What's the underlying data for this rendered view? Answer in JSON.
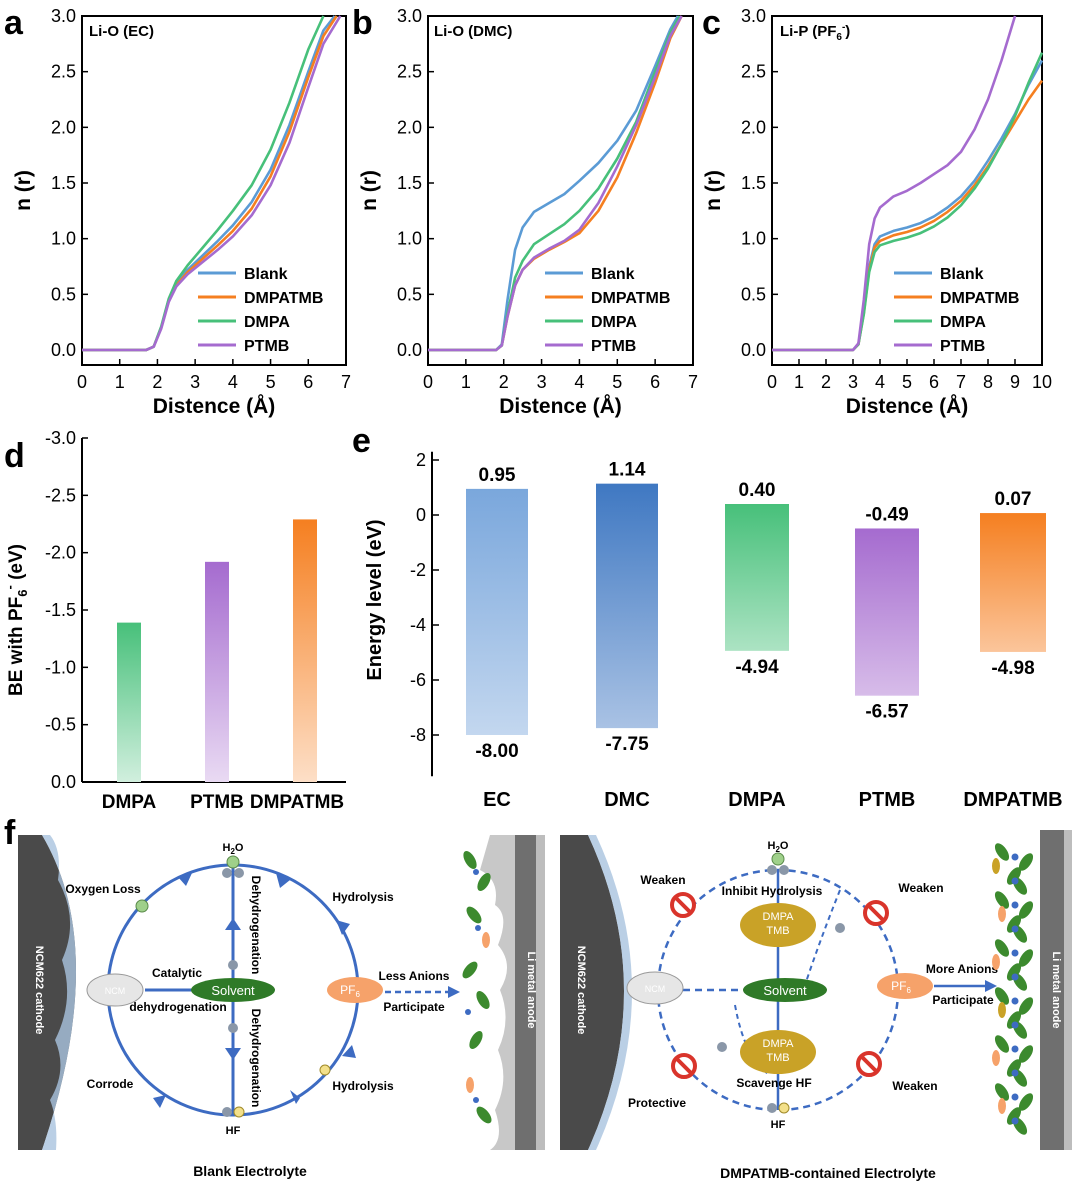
{
  "colors": {
    "blank": "#5b9bd5",
    "dmpatmb": "#f57f20",
    "dmpa": "#47c07a",
    "ptmb": "#a56bcf",
    "ec": "#7aa7dc",
    "dmc": "#3f78c2",
    "arrow": "#3d6bc2",
    "cathode": "#4a4a4a",
    "solvent": "#2f7a28",
    "additive": "#c9a227",
    "pf6": "#f6a26a",
    "no_sign": "#d9342b"
  },
  "panels": {
    "a": {
      "letter": "a",
      "label": "Li-O (EC)"
    },
    "b": {
      "letter": "b",
      "label": "Li-O (DMC)"
    },
    "c": {
      "letter": "c",
      "label_main": "Li-P (PF",
      "label_sub": "6",
      "label_sup": "-",
      "label_end": ")"
    },
    "d": {
      "letter": "d"
    },
    "e": {
      "letter": "e"
    },
    "f": {
      "letter": "f"
    }
  },
  "chart_data": [
    {
      "id": "a",
      "type": "line",
      "title": "Li-O (EC)",
      "xlabel": "Distence (Å)",
      "ylabel": "n (r)",
      "xlim": [
        0,
        7
      ],
      "ylim": [
        0,
        3
      ],
      "xticks": [
        "0",
        "1",
        "2",
        "3",
        "4",
        "5",
        "6",
        "7"
      ],
      "yticks": [
        "0.0",
        "0.5",
        "1.0",
        "1.5",
        "2.0",
        "2.5",
        "3.0"
      ],
      "legend": "bottom-right",
      "series": [
        {
          "name": "Blank",
          "key": "blank",
          "x": [
            0,
            1.7,
            1.9,
            2.1,
            2.3,
            2.5,
            2.8,
            3.2,
            3.6,
            4.0,
            4.5,
            5.0,
            5.5,
            6.0,
            6.4,
            6.7
          ],
          "y": [
            0,
            0,
            0.03,
            0.2,
            0.45,
            0.6,
            0.72,
            0.85,
            0.98,
            1.12,
            1.33,
            1.62,
            2.02,
            2.5,
            2.87,
            3.0
          ]
        },
        {
          "name": "DMPATMB",
          "key": "dmpatmb",
          "x": [
            0,
            1.7,
            1.9,
            2.1,
            2.3,
            2.5,
            2.8,
            3.2,
            3.6,
            4.0,
            4.5,
            5.0,
            5.5,
            6.0,
            6.4,
            6.75
          ],
          "y": [
            0,
            0,
            0.03,
            0.2,
            0.44,
            0.58,
            0.7,
            0.82,
            0.94,
            1.07,
            1.27,
            1.56,
            1.96,
            2.45,
            2.82,
            3.0
          ]
        },
        {
          "name": "DMPA",
          "key": "dmpa",
          "x": [
            0,
            1.7,
            1.9,
            2.1,
            2.3,
            2.5,
            2.8,
            3.2,
            3.6,
            4.0,
            4.5,
            5.0,
            5.5,
            6.0,
            6.4
          ],
          "y": [
            0,
            0,
            0.03,
            0.21,
            0.46,
            0.62,
            0.76,
            0.92,
            1.08,
            1.25,
            1.48,
            1.8,
            2.22,
            2.7,
            3.0
          ]
        },
        {
          "name": "PTMB",
          "key": "ptmb",
          "x": [
            0,
            1.7,
            1.9,
            2.1,
            2.3,
            2.5,
            2.8,
            3.2,
            3.6,
            4.0,
            4.5,
            5.0,
            5.5,
            6.0,
            6.4,
            6.85
          ],
          "y": [
            0,
            0,
            0.03,
            0.19,
            0.43,
            0.57,
            0.68,
            0.79,
            0.9,
            1.02,
            1.21,
            1.48,
            1.86,
            2.36,
            2.75,
            3.0
          ]
        }
      ]
    },
    {
      "id": "b",
      "type": "line",
      "title": "Li-O (DMC)",
      "xlabel": "Distence (Å)",
      "ylabel": "n (r)",
      "xlim": [
        0,
        7
      ],
      "ylim": [
        0,
        3
      ],
      "xticks": [
        "0",
        "1",
        "2",
        "3",
        "4",
        "5",
        "6",
        "7"
      ],
      "yticks": [
        "0.0",
        "0.5",
        "1.0",
        "1.5",
        "2.0",
        "2.5",
        "3.0"
      ],
      "legend": "bottom-right",
      "series": [
        {
          "name": "Blank",
          "key": "blank",
          "x": [
            0,
            1.8,
            1.95,
            2.1,
            2.3,
            2.5,
            2.8,
            3.2,
            3.6,
            4.0,
            4.5,
            5.0,
            5.5,
            6.0,
            6.4,
            6.6
          ],
          "y": [
            0,
            0,
            0.05,
            0.45,
            0.9,
            1.1,
            1.24,
            1.32,
            1.4,
            1.52,
            1.68,
            1.88,
            2.15,
            2.55,
            2.88,
            3.0
          ]
        },
        {
          "name": "DMPATMB",
          "key": "dmpatmb",
          "x": [
            0,
            1.8,
            1.95,
            2.1,
            2.3,
            2.5,
            2.8,
            3.2,
            3.6,
            4.0,
            4.5,
            5.0,
            5.5,
            6.0,
            6.4,
            6.7
          ],
          "y": [
            0,
            0,
            0.04,
            0.3,
            0.58,
            0.72,
            0.82,
            0.9,
            0.97,
            1.05,
            1.25,
            1.55,
            1.95,
            2.4,
            2.8,
            3.0
          ]
        },
        {
          "name": "DMPA",
          "key": "dmpa",
          "x": [
            0,
            1.8,
            1.95,
            2.1,
            2.3,
            2.5,
            2.8,
            3.2,
            3.6,
            4.0,
            4.5,
            5.0,
            5.5,
            6.0,
            6.4,
            6.65
          ],
          "y": [
            0,
            0,
            0.04,
            0.33,
            0.65,
            0.8,
            0.95,
            1.04,
            1.13,
            1.25,
            1.45,
            1.72,
            2.05,
            2.5,
            2.85,
            3.0
          ]
        },
        {
          "name": "PTMB",
          "key": "ptmb",
          "x": [
            0,
            1.8,
            1.95,
            2.1,
            2.3,
            2.5,
            2.8,
            3.2,
            3.6,
            4.0,
            4.5,
            5.0,
            5.5,
            6.0,
            6.4,
            6.7
          ],
          "y": [
            0,
            0,
            0.04,
            0.3,
            0.58,
            0.72,
            0.83,
            0.91,
            0.98,
            1.08,
            1.32,
            1.65,
            2.02,
            2.45,
            2.82,
            3.0
          ]
        }
      ]
    },
    {
      "id": "c",
      "type": "line",
      "title": "Li-P (PF6-)",
      "xlabel": "Distence (Å)",
      "ylabel": "n (r)",
      "xlim": [
        0,
        10
      ],
      "ylim": [
        0,
        3
      ],
      "xticks": [
        "0",
        "1",
        "2",
        "3",
        "4",
        "5",
        "6",
        "7",
        "8",
        "9",
        "10"
      ],
      "yticks": [
        "0.0",
        "0.5",
        "1.0",
        "1.5",
        "2.0",
        "2.5",
        "3.0"
      ],
      "legend": "bottom-right",
      "series": [
        {
          "name": "Blank",
          "key": "blank",
          "x": [
            0,
            3.0,
            3.2,
            3.4,
            3.6,
            3.8,
            4.0,
            4.5,
            5.0,
            5.5,
            6.0,
            6.5,
            7.0,
            7.5,
            8.0,
            8.5,
            9.0,
            9.5,
            10.0
          ],
          "y": [
            0,
            0,
            0.05,
            0.35,
            0.75,
            0.95,
            1.02,
            1.07,
            1.1,
            1.14,
            1.2,
            1.28,
            1.38,
            1.52,
            1.7,
            1.9,
            2.12,
            2.38,
            2.6
          ]
        },
        {
          "name": "DMPATMB",
          "key": "dmpatmb",
          "x": [
            0,
            3.0,
            3.2,
            3.4,
            3.6,
            3.8,
            4.0,
            4.5,
            5.0,
            5.5,
            6.0,
            6.5,
            7.0,
            7.5,
            8.0,
            8.5,
            9.0,
            9.5,
            10.0
          ],
          "y": [
            0,
            0,
            0.05,
            0.33,
            0.72,
            0.92,
            0.98,
            1.03,
            1.06,
            1.1,
            1.16,
            1.24,
            1.34,
            1.48,
            1.65,
            1.85,
            2.05,
            2.25,
            2.42
          ]
        },
        {
          "name": "DMPA",
          "key": "dmpa",
          "x": [
            0,
            3.0,
            3.2,
            3.4,
            3.6,
            3.8,
            4.0,
            4.5,
            5.0,
            5.5,
            6.0,
            6.5,
            7.0,
            7.5,
            8.0,
            8.5,
            9.0,
            9.5,
            10.0
          ],
          "y": [
            0,
            0,
            0.05,
            0.32,
            0.7,
            0.88,
            0.94,
            0.98,
            1.01,
            1.05,
            1.11,
            1.19,
            1.3,
            1.45,
            1.63,
            1.85,
            2.1,
            2.4,
            2.67
          ]
        },
        {
          "name": "PTMB",
          "key": "ptmb",
          "x": [
            0,
            3.0,
            3.2,
            3.4,
            3.6,
            3.8,
            4.0,
            4.5,
            5.0,
            5.5,
            6.0,
            6.5,
            7.0,
            7.5,
            8.0,
            8.5,
            9.0
          ],
          "y": [
            0,
            0,
            0.06,
            0.45,
            0.95,
            1.18,
            1.28,
            1.38,
            1.43,
            1.5,
            1.58,
            1.66,
            1.78,
            1.98,
            2.25,
            2.6,
            3.0
          ]
        }
      ]
    },
    {
      "id": "d",
      "type": "bar",
      "xlabel": "",
      "ylabel_main": "BE with PF",
      "ylabel_sub": "6",
      "ylabel_sup": "-",
      "ylabel_end": " (eV)",
      "ylim": [
        0,
        -3.0
      ],
      "yticks": [
        "0.0",
        "-0.5",
        "-1.0",
        "-1.5",
        "-2.0",
        "-2.5",
        "-3.0"
      ],
      "categories": [
        "DMPA",
        "PTMB",
        "DMPATMB"
      ],
      "keys": [
        "dmpa",
        "ptmb",
        "dmpatmb"
      ],
      "values": [
        -1.39,
        -1.92,
        -2.29
      ]
    },
    {
      "id": "e",
      "type": "bar",
      "xlabel": "",
      "ylabel": "Energy level (eV)",
      "ylim": [
        -9,
        2
      ],
      "yticks": [
        "2",
        "0",
        "-2",
        "-4",
        "-6",
        "-8"
      ],
      "categories": [
        "EC",
        "DMC",
        "DMPA",
        "PTMB",
        "DMPATMB"
      ],
      "keys": [
        "ec",
        "dmc",
        "dmpa",
        "ptmb",
        "dmpatmb"
      ],
      "lumo": [
        0.95,
        1.14,
        0.4,
        -0.49,
        0.07
      ],
      "homo": [
        -8.0,
        -7.75,
        -4.94,
        -6.57,
        -4.98
      ],
      "lumo_labels": [
        "0.95",
        "1.14",
        "0.40",
        "-0.49",
        "0.07"
      ],
      "homo_labels": [
        "-8.00",
        "-7.75",
        "-4.94",
        "-6.57",
        "-4.98"
      ]
    }
  ],
  "schematic": {
    "left": {
      "title": "Blank Electrolyte",
      "cathode": "NCM622 cathode",
      "anode": "Li metal anode",
      "ncm": "NCM",
      "solvent": "Solvent",
      "h2o_main": "H",
      "h2o_sub": "2",
      "h2o_end": "O",
      "hf": "HF",
      "pf6_main": "PF",
      "pf6_sub": "6",
      "oxygen_loss": "Oxygen Loss",
      "hydrolysis_top": "Hydrolysis",
      "hydrolysis_bottom": "Hydrolysis",
      "catalytic": "Catalytic",
      "dehydrogenation_h": "dehydrogenation",
      "dehydrogenation_top": "Dehydrogenation",
      "dehydrogenation_bottom": "Dehydrogenation",
      "corrode": "Corrode",
      "less_anions": "Less Anions",
      "participate": "Participate"
    },
    "right": {
      "title": "DMPATMB-contained Electrolyte",
      "cathode": "NCM622 cathode",
      "anode": "Li metal anode",
      "ncm": "NCM",
      "solvent": "Solvent",
      "h2o_main": "H",
      "h2o_sub": "2",
      "h2o_end": "O",
      "hf": "HF",
      "pf6_main": "PF",
      "pf6_sub": "6",
      "additive_line1": "DMPA",
      "additive_line2": "TMB",
      "inhibit": "Inhibit Hydrolysis",
      "scavenge": "Scavenge HF",
      "weaken_tl": "Weaken",
      "weaken_tr": "Weaken",
      "weaken_br": "Weaken",
      "protective": "Protective",
      "more_anions": "More Anions",
      "participate": "Participate"
    }
  }
}
